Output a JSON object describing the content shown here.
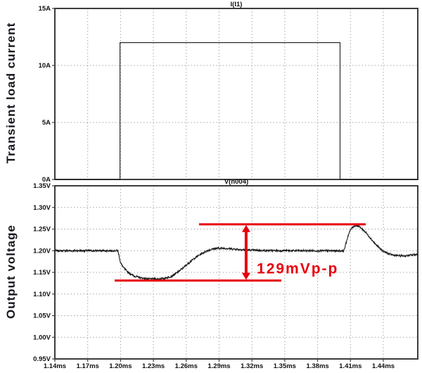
{
  "side_labels": {
    "current": "Transient load current",
    "voltage": "Output voltage"
  },
  "colors": {
    "background": "#ffffff",
    "trace": "#1c1c1c",
    "grid": "#a6a6a6",
    "border": "#3c3c3c",
    "tick_text": "#111111",
    "annotation_red": "#e8000d",
    "side_label_text": "#16161d"
  },
  "chart_data": [
    {
      "type": "line",
      "panel": "current",
      "title": "I(I1)",
      "x_range": [
        1.14,
        1.4715
      ],
      "y_range": [
        0,
        15
      ],
      "x_unit": "ms",
      "y_unit": "A",
      "grid": true,
      "show_x_labels": false,
      "x_ticks": [
        {
          "t": 1.14,
          "label": "1.14ms"
        },
        {
          "t": 1.17,
          "label": "1.17ms"
        },
        {
          "t": 1.2,
          "label": "1.20ms"
        },
        {
          "t": 1.23,
          "label": "1.23ms"
        },
        {
          "t": 1.26,
          "label": "1.26ms"
        },
        {
          "t": 1.29,
          "label": "1.29ms"
        },
        {
          "t": 1.32,
          "label": "1.32ms"
        },
        {
          "t": 1.35,
          "label": "1.35ms"
        },
        {
          "t": 1.38,
          "label": "1.38ms"
        },
        {
          "t": 1.41,
          "label": "1.41ms"
        },
        {
          "t": 1.44,
          "label": "1.44ms"
        }
      ],
      "y_ticks": [
        {
          "v": 0,
          "label": "0A"
        },
        {
          "v": 5,
          "label": "5A"
        },
        {
          "v": 10,
          "label": "10A"
        },
        {
          "v": 15,
          "label": "15A"
        }
      ],
      "series": [
        {
          "name": "I(I1)",
          "noise": 0,
          "points": [
            [
              1.14,
              0
            ],
            [
              1.1995,
              0
            ],
            [
              1.1995,
              12
            ],
            [
              1.4005,
              12
            ],
            [
              1.4005,
              0
            ],
            [
              1.4715,
              0
            ]
          ]
        }
      ]
    },
    {
      "type": "line",
      "panel": "voltage",
      "title": "V(n004)",
      "x_range": [
        1.14,
        1.4715
      ],
      "y_range": [
        0.95,
        1.35
      ],
      "x_unit": "ms",
      "y_unit": "V",
      "grid": true,
      "show_x_labels": true,
      "x_ticks": [
        {
          "t": 1.14,
          "label": "1.14ms"
        },
        {
          "t": 1.17,
          "label": "1.17ms"
        },
        {
          "t": 1.2,
          "label": "1.20ms"
        },
        {
          "t": 1.23,
          "label": "1.23ms"
        },
        {
          "t": 1.26,
          "label": "1.26ms"
        },
        {
          "t": 1.29,
          "label": "1.29ms"
        },
        {
          "t": 1.32,
          "label": "1.32ms"
        },
        {
          "t": 1.35,
          "label": "1.35ms"
        },
        {
          "t": 1.38,
          "label": "1.38ms"
        },
        {
          "t": 1.41,
          "label": "1.41ms"
        },
        {
          "t": 1.44,
          "label": "1.44ms"
        }
      ],
      "y_ticks": [
        {
          "v": 0.95,
          "label": "0.95V"
        },
        {
          "v": 1.0,
          "label": "1.00V"
        },
        {
          "v": 1.05,
          "label": "1.05V"
        },
        {
          "v": 1.1,
          "label": "1.10V"
        },
        {
          "v": 1.15,
          "label": "1.15V"
        },
        {
          "v": 1.2,
          "label": "1.20V"
        },
        {
          "v": 1.25,
          "label": "1.25V"
        },
        {
          "v": 1.3,
          "label": "1.30V"
        },
        {
          "v": 1.35,
          "label": "1.35V"
        }
      ],
      "series": [
        {
          "name": "V(n004)",
          "noise": 0.0022,
          "points": [
            [
              1.14,
              1.2
            ],
            [
              1.1975,
              1.2
            ],
            [
              1.1985,
              1.19
            ],
            [
              1.2,
              1.172
            ],
            [
              1.203,
              1.16
            ],
            [
              1.207,
              1.15
            ],
            [
              1.212,
              1.142
            ],
            [
              1.218,
              1.1375
            ],
            [
              1.225,
              1.135
            ],
            [
              1.233,
              1.1345
            ],
            [
              1.24,
              1.136
            ],
            [
              1.245,
              1.1395
            ],
            [
              1.249,
              1.1445
            ],
            [
              1.253,
              1.152
            ],
            [
              1.257,
              1.16
            ],
            [
              1.261,
              1.169
            ],
            [
              1.265,
              1.1775
            ],
            [
              1.27,
              1.187
            ],
            [
              1.275,
              1.1945
            ],
            [
              1.28,
              1.201
            ],
            [
              1.285,
              1.2045
            ],
            [
              1.29,
              1.2058
            ],
            [
              1.296,
              1.2055
            ],
            [
              1.303,
              1.204
            ],
            [
              1.31,
              1.2025
            ],
            [
              1.32,
              1.2012
            ],
            [
              1.335,
              1.2003
            ],
            [
              1.36,
              1.2
            ],
            [
              1.39,
              1.1998
            ],
            [
              1.4,
              1.2
            ],
            [
              1.404,
              1.2
            ],
            [
              1.406,
              1.218
            ],
            [
              1.408,
              1.236
            ],
            [
              1.41,
              1.248
            ],
            [
              1.412,
              1.255
            ],
            [
              1.4145,
              1.258
            ],
            [
              1.417,
              1.2575
            ],
            [
              1.42,
              1.252
            ],
            [
              1.424,
              1.242
            ],
            [
              1.428,
              1.23
            ],
            [
              1.432,
              1.2175
            ],
            [
              1.436,
              1.207
            ],
            [
              1.44,
              1.199
            ],
            [
              1.444,
              1.1935
            ],
            [
              1.449,
              1.19
            ],
            [
              1.455,
              1.1882
            ],
            [
              1.462,
              1.1885
            ],
            [
              1.468,
              1.1905
            ],
            [
              1.4715,
              1.192
            ]
          ]
        }
      ],
      "annotation": {
        "label": "129mVp-p",
        "top_value": 1.261,
        "bottom_value": 1.131,
        "top_line_t": [
          1.2717,
          1.4239
        ],
        "bottom_line_t": [
          1.1946,
          1.3469
        ],
        "arrow_t": 1.3147,
        "label_t": 1.3244,
        "label_v": 1.159
      }
    }
  ]
}
